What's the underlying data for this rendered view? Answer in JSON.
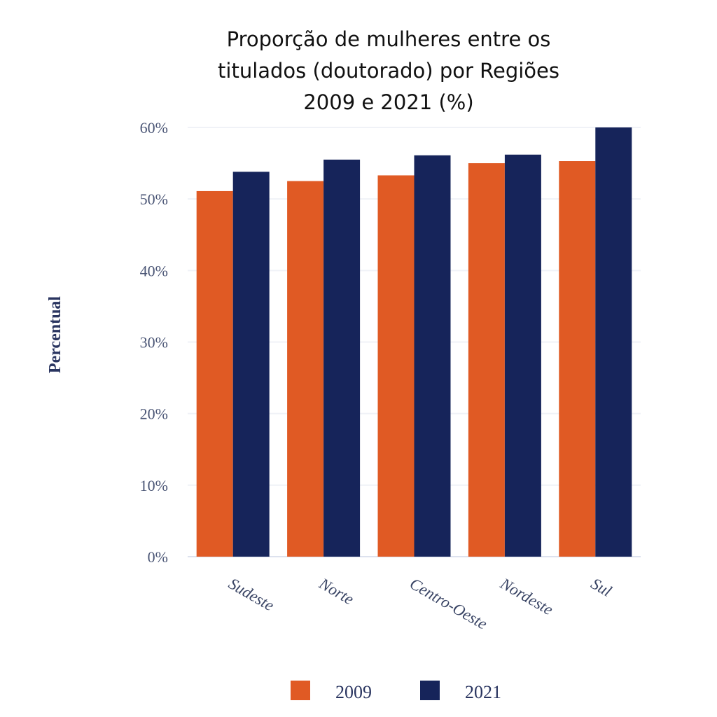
{
  "chart_data": {
    "type": "bar",
    "title": [
      "Proporção de mulheres entre os",
      "titulados (doutorado) por Regiões",
      "2009 e 2021 (%)"
    ],
    "y_label": "Percentual",
    "categories": [
      "Sudeste",
      "Norte",
      "Centro-Oeste",
      "Nordeste",
      "Sul"
    ],
    "series": [
      {
        "name": "2009",
        "color": "#e05a24",
        "values": [
          51.1,
          52.5,
          53.3,
          55.0,
          55.3
        ]
      },
      {
        "name": "2021",
        "color": "#16245a",
        "values": [
          53.8,
          55.5,
          56.1,
          56.2,
          60.0
        ]
      }
    ],
    "ylim": [
      0,
      60
    ],
    "yticks": [
      {
        "value": 0,
        "label": "0%"
      },
      {
        "value": 10,
        "label": "10%"
      },
      {
        "value": 20,
        "label": "20%"
      },
      {
        "value": 30,
        "label": "30%"
      },
      {
        "value": 40,
        "label": "40%"
      },
      {
        "value": 50,
        "label": "50%"
      },
      {
        "value": 60,
        "label": "60%"
      }
    ],
    "grid": true,
    "legend": "bottom"
  }
}
